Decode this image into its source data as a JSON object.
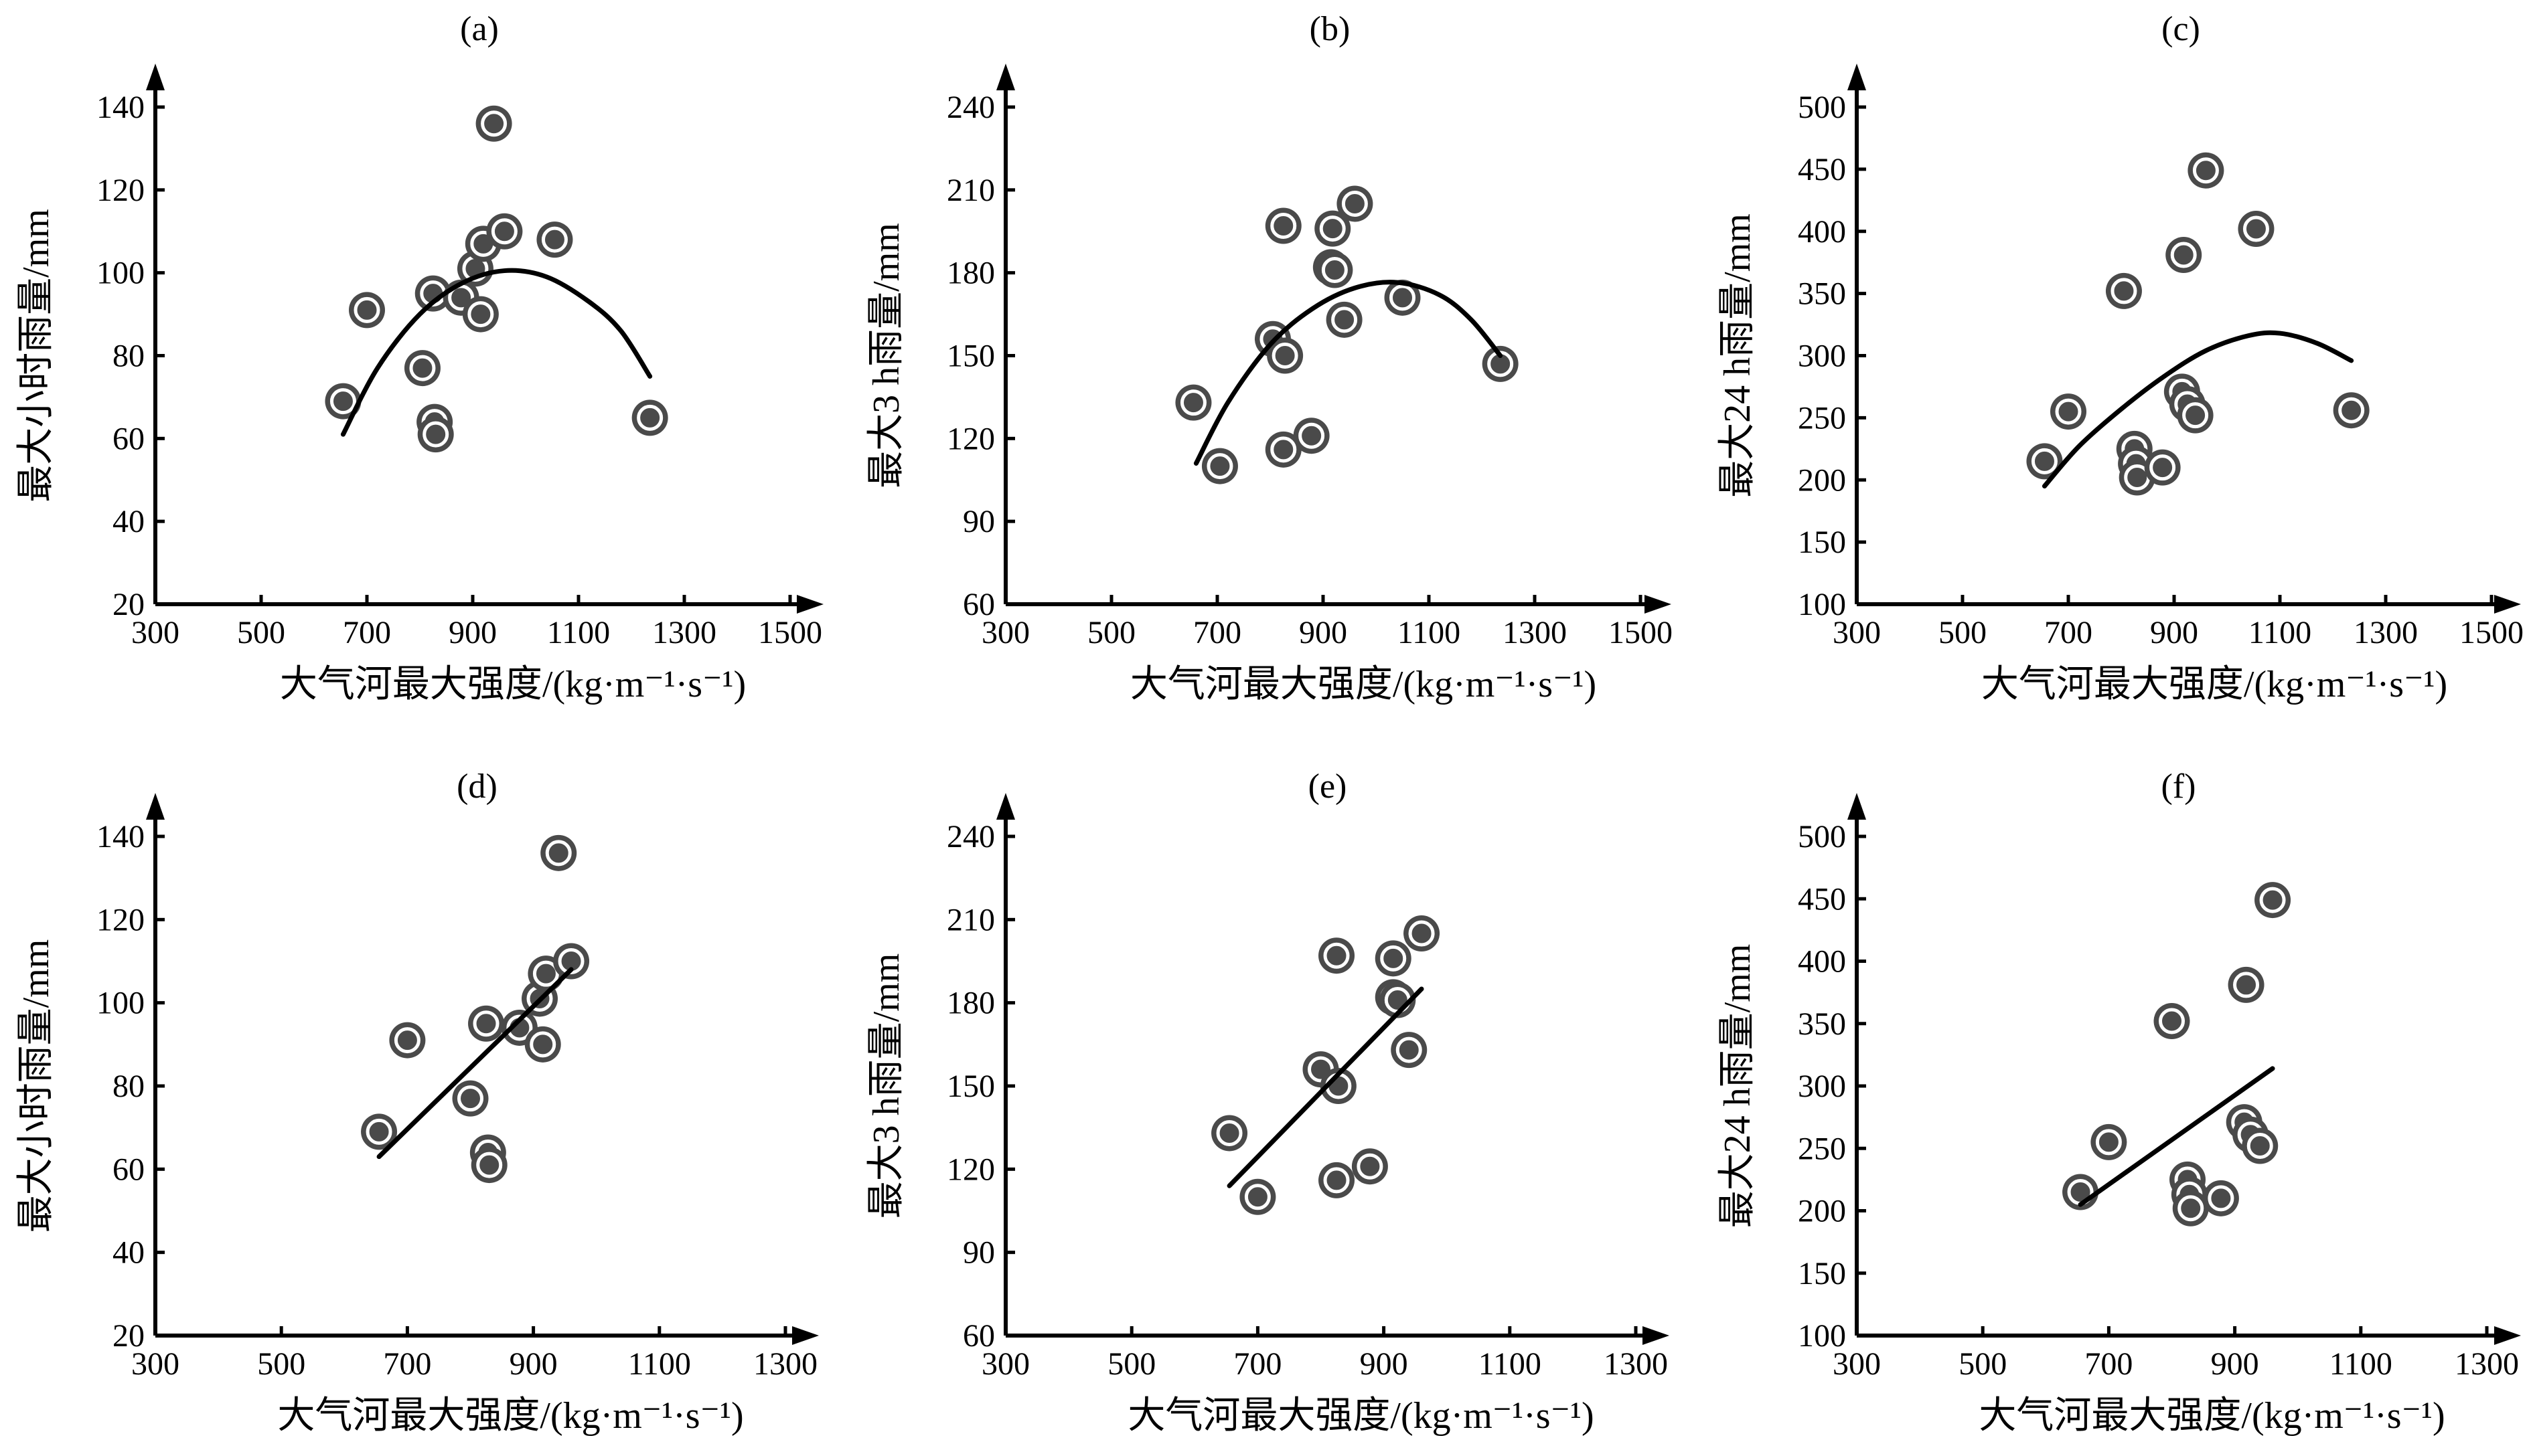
{
  "chart_data": [
    {
      "type": "scatter",
      "panel_label": "(a)",
      "xlabel": "大气河最大强度/(kg·m⁻¹·s⁻¹)",
      "ylabel": "最大小时雨量/mm",
      "xlim": [
        300,
        1600
      ],
      "ylim": [
        20,
        150
      ],
      "x_ticks": [
        300,
        500,
        700,
        900,
        1100,
        1300,
        1500
      ],
      "y_ticks": [
        20,
        40,
        60,
        80,
        100,
        120,
        140
      ],
      "fit": "quadratic",
      "points": [
        {
          "x": 655,
          "y": 69
        },
        {
          "x": 700,
          "y": 91
        },
        {
          "x": 805,
          "y": 77
        },
        {
          "x": 825,
          "y": 95
        },
        {
          "x": 828,
          "y": 64
        },
        {
          "x": 830,
          "y": 61
        },
        {
          "x": 878,
          "y": 94
        },
        {
          "x": 905,
          "y": 101
        },
        {
          "x": 915,
          "y": 90
        },
        {
          "x": 920,
          "y": 107
        },
        {
          "x": 940,
          "y": 136
        },
        {
          "x": 960,
          "y": 110
        },
        {
          "x": 1055,
          "y": 108
        },
        {
          "x": 1235,
          "y": 65
        }
      ],
      "fit_line": [
        {
          "x": 655,
          "y": 61
        },
        {
          "x": 720,
          "y": 77
        },
        {
          "x": 800,
          "y": 90
        },
        {
          "x": 880,
          "y": 97.5
        },
        {
          "x": 960,
          "y": 100.5
        },
        {
          "x": 1040,
          "y": 99
        },
        {
          "x": 1120,
          "y": 93
        },
        {
          "x": 1180,
          "y": 86
        },
        {
          "x": 1235,
          "y": 75
        }
      ]
    },
    {
      "type": "scatter",
      "panel_label": "(b)",
      "xlabel": "大气河最大强度/(kg·m⁻¹·s⁻¹)",
      "ylabel": "最大3 h雨量/mm",
      "xlim": [
        300,
        1600
      ],
      "ylim": [
        60,
        255
      ],
      "x_ticks": [
        300,
        500,
        700,
        900,
        1100,
        1300,
        1500
      ],
      "y_ticks": [
        60,
        90,
        120,
        150,
        180,
        210,
        240
      ],
      "fit": "quadratic",
      "points": [
        {
          "x": 655,
          "y": 133
        },
        {
          "x": 705,
          "y": 110
        },
        {
          "x": 805,
          "y": 156
        },
        {
          "x": 825,
          "y": 197
        },
        {
          "x": 825,
          "y": 116
        },
        {
          "x": 828,
          "y": 150
        },
        {
          "x": 878,
          "y": 121
        },
        {
          "x": 915,
          "y": 182
        },
        {
          "x": 918,
          "y": 196
        },
        {
          "x": 922,
          "y": 181
        },
        {
          "x": 940,
          "y": 163
        },
        {
          "x": 960,
          "y": 205
        },
        {
          "x": 1050,
          "y": 171
        },
        {
          "x": 1235,
          "y": 147
        }
      ],
      "fit_line": [
        {
          "x": 660,
          "y": 111
        },
        {
          "x": 720,
          "y": 133
        },
        {
          "x": 800,
          "y": 154
        },
        {
          "x": 880,
          "y": 167
        },
        {
          "x": 960,
          "y": 174.5
        },
        {
          "x": 1040,
          "y": 176.5
        },
        {
          "x": 1120,
          "y": 172
        },
        {
          "x": 1180,
          "y": 163
        },
        {
          "x": 1235,
          "y": 150
        }
      ]
    },
    {
      "type": "scatter",
      "panel_label": "(c)",
      "xlabel": "大气河最大强度/(kg·m⁻¹·s⁻¹)",
      "ylabel": "最大24 h雨量/mm",
      "xlim": [
        300,
        1600
      ],
      "ylim": [
        100,
        525
      ],
      "x_ticks": [
        300,
        500,
        700,
        900,
        1100,
        1300,
        1500
      ],
      "y_ticks": [
        100,
        150,
        200,
        250,
        300,
        350,
        400,
        450,
        500
      ],
      "fit": "quadratic",
      "points": [
        {
          "x": 655,
          "y": 215
        },
        {
          "x": 700,
          "y": 255
        },
        {
          "x": 805,
          "y": 352
        },
        {
          "x": 825,
          "y": 225
        },
        {
          "x": 828,
          "y": 213
        },
        {
          "x": 830,
          "y": 202
        },
        {
          "x": 878,
          "y": 210
        },
        {
          "x": 915,
          "y": 271
        },
        {
          "x": 918,
          "y": 381
        },
        {
          "x": 925,
          "y": 261
        },
        {
          "x": 940,
          "y": 252
        },
        {
          "x": 960,
          "y": 449
        },
        {
          "x": 1055,
          "y": 402
        },
        {
          "x": 1235,
          "y": 256
        }
      ],
      "fit_line": [
        {
          "x": 655,
          "y": 195
        },
        {
          "x": 720,
          "y": 227
        },
        {
          "x": 800,
          "y": 257
        },
        {
          "x": 880,
          "y": 283
        },
        {
          "x": 960,
          "y": 304
        },
        {
          "x": 1040,
          "y": 316
        },
        {
          "x": 1100,
          "y": 318
        },
        {
          "x": 1170,
          "y": 310
        },
        {
          "x": 1235,
          "y": 296
        }
      ]
    },
    {
      "type": "scatter",
      "panel_label": "(d)",
      "xlabel": "大气河最大强度/(kg·m⁻¹·s⁻¹)",
      "ylabel": "最大小时雨量/mm",
      "xlim": [
        300,
        1400
      ],
      "ylim": [
        20,
        150
      ],
      "x_ticks": [
        300,
        500,
        700,
        900,
        1100,
        1300
      ],
      "y_ticks": [
        20,
        40,
        60,
        80,
        100,
        120,
        140
      ],
      "fit": "linear",
      "points": [
        {
          "x": 655,
          "y": 69
        },
        {
          "x": 700,
          "y": 91
        },
        {
          "x": 800,
          "y": 77
        },
        {
          "x": 825,
          "y": 95
        },
        {
          "x": 828,
          "y": 64
        },
        {
          "x": 830,
          "y": 61
        },
        {
          "x": 878,
          "y": 94
        },
        {
          "x": 910,
          "y": 101
        },
        {
          "x": 915,
          "y": 90
        },
        {
          "x": 920,
          "y": 107
        },
        {
          "x": 940,
          "y": 136
        },
        {
          "x": 960,
          "y": 110
        }
      ],
      "fit_line": [
        {
          "x": 655,
          "y": 63
        },
        {
          "x": 960,
          "y": 108
        }
      ]
    },
    {
      "type": "scatter",
      "panel_label": "(e)",
      "xlabel": "大气河最大强度/(kg·m⁻¹·s⁻¹)",
      "ylabel": "最大3 h雨量/mm",
      "xlim": [
        300,
        1400
      ],
      "ylim": [
        60,
        255
      ],
      "x_ticks": [
        300,
        500,
        700,
        900,
        1100,
        1300
      ],
      "y_ticks": [
        60,
        90,
        120,
        150,
        180,
        210,
        240
      ],
      "fit": "linear",
      "points": [
        {
          "x": 655,
          "y": 133
        },
        {
          "x": 700,
          "y": 110
        },
        {
          "x": 800,
          "y": 156
        },
        {
          "x": 825,
          "y": 197
        },
        {
          "x": 825,
          "y": 116
        },
        {
          "x": 828,
          "y": 150
        },
        {
          "x": 878,
          "y": 121
        },
        {
          "x": 915,
          "y": 182
        },
        {
          "x": 915,
          "y": 196
        },
        {
          "x": 922,
          "y": 181
        },
        {
          "x": 940,
          "y": 163
        },
        {
          "x": 960,
          "y": 205
        }
      ],
      "fit_line": [
        {
          "x": 655,
          "y": 114
        },
        {
          "x": 960,
          "y": 185
        }
      ]
    },
    {
      "type": "scatter",
      "panel_label": "(f)",
      "xlabel": "大气河最大强度/(kg·m⁻¹·s⁻¹)",
      "ylabel": "最大24 h雨量/mm",
      "xlim": [
        300,
        1400
      ],
      "ylim": [
        100,
        525
      ],
      "x_ticks": [
        300,
        500,
        700,
        900,
        1100,
        1300
      ],
      "y_ticks": [
        100,
        150,
        200,
        250,
        300,
        350,
        400,
        450,
        500
      ],
      "fit": "linear",
      "points": [
        {
          "x": 655,
          "y": 215
        },
        {
          "x": 700,
          "y": 255
        },
        {
          "x": 800,
          "y": 352
        },
        {
          "x": 825,
          "y": 225
        },
        {
          "x": 828,
          "y": 213
        },
        {
          "x": 830,
          "y": 202
        },
        {
          "x": 878,
          "y": 210
        },
        {
          "x": 915,
          "y": 271
        },
        {
          "x": 918,
          "y": 381
        },
        {
          "x": 925,
          "y": 261
        },
        {
          "x": 940,
          "y": 252
        },
        {
          "x": 960,
          "y": 449
        }
      ],
      "fit_line": [
        {
          "x": 655,
          "y": 205
        },
        {
          "x": 960,
          "y": 314
        }
      ]
    }
  ]
}
